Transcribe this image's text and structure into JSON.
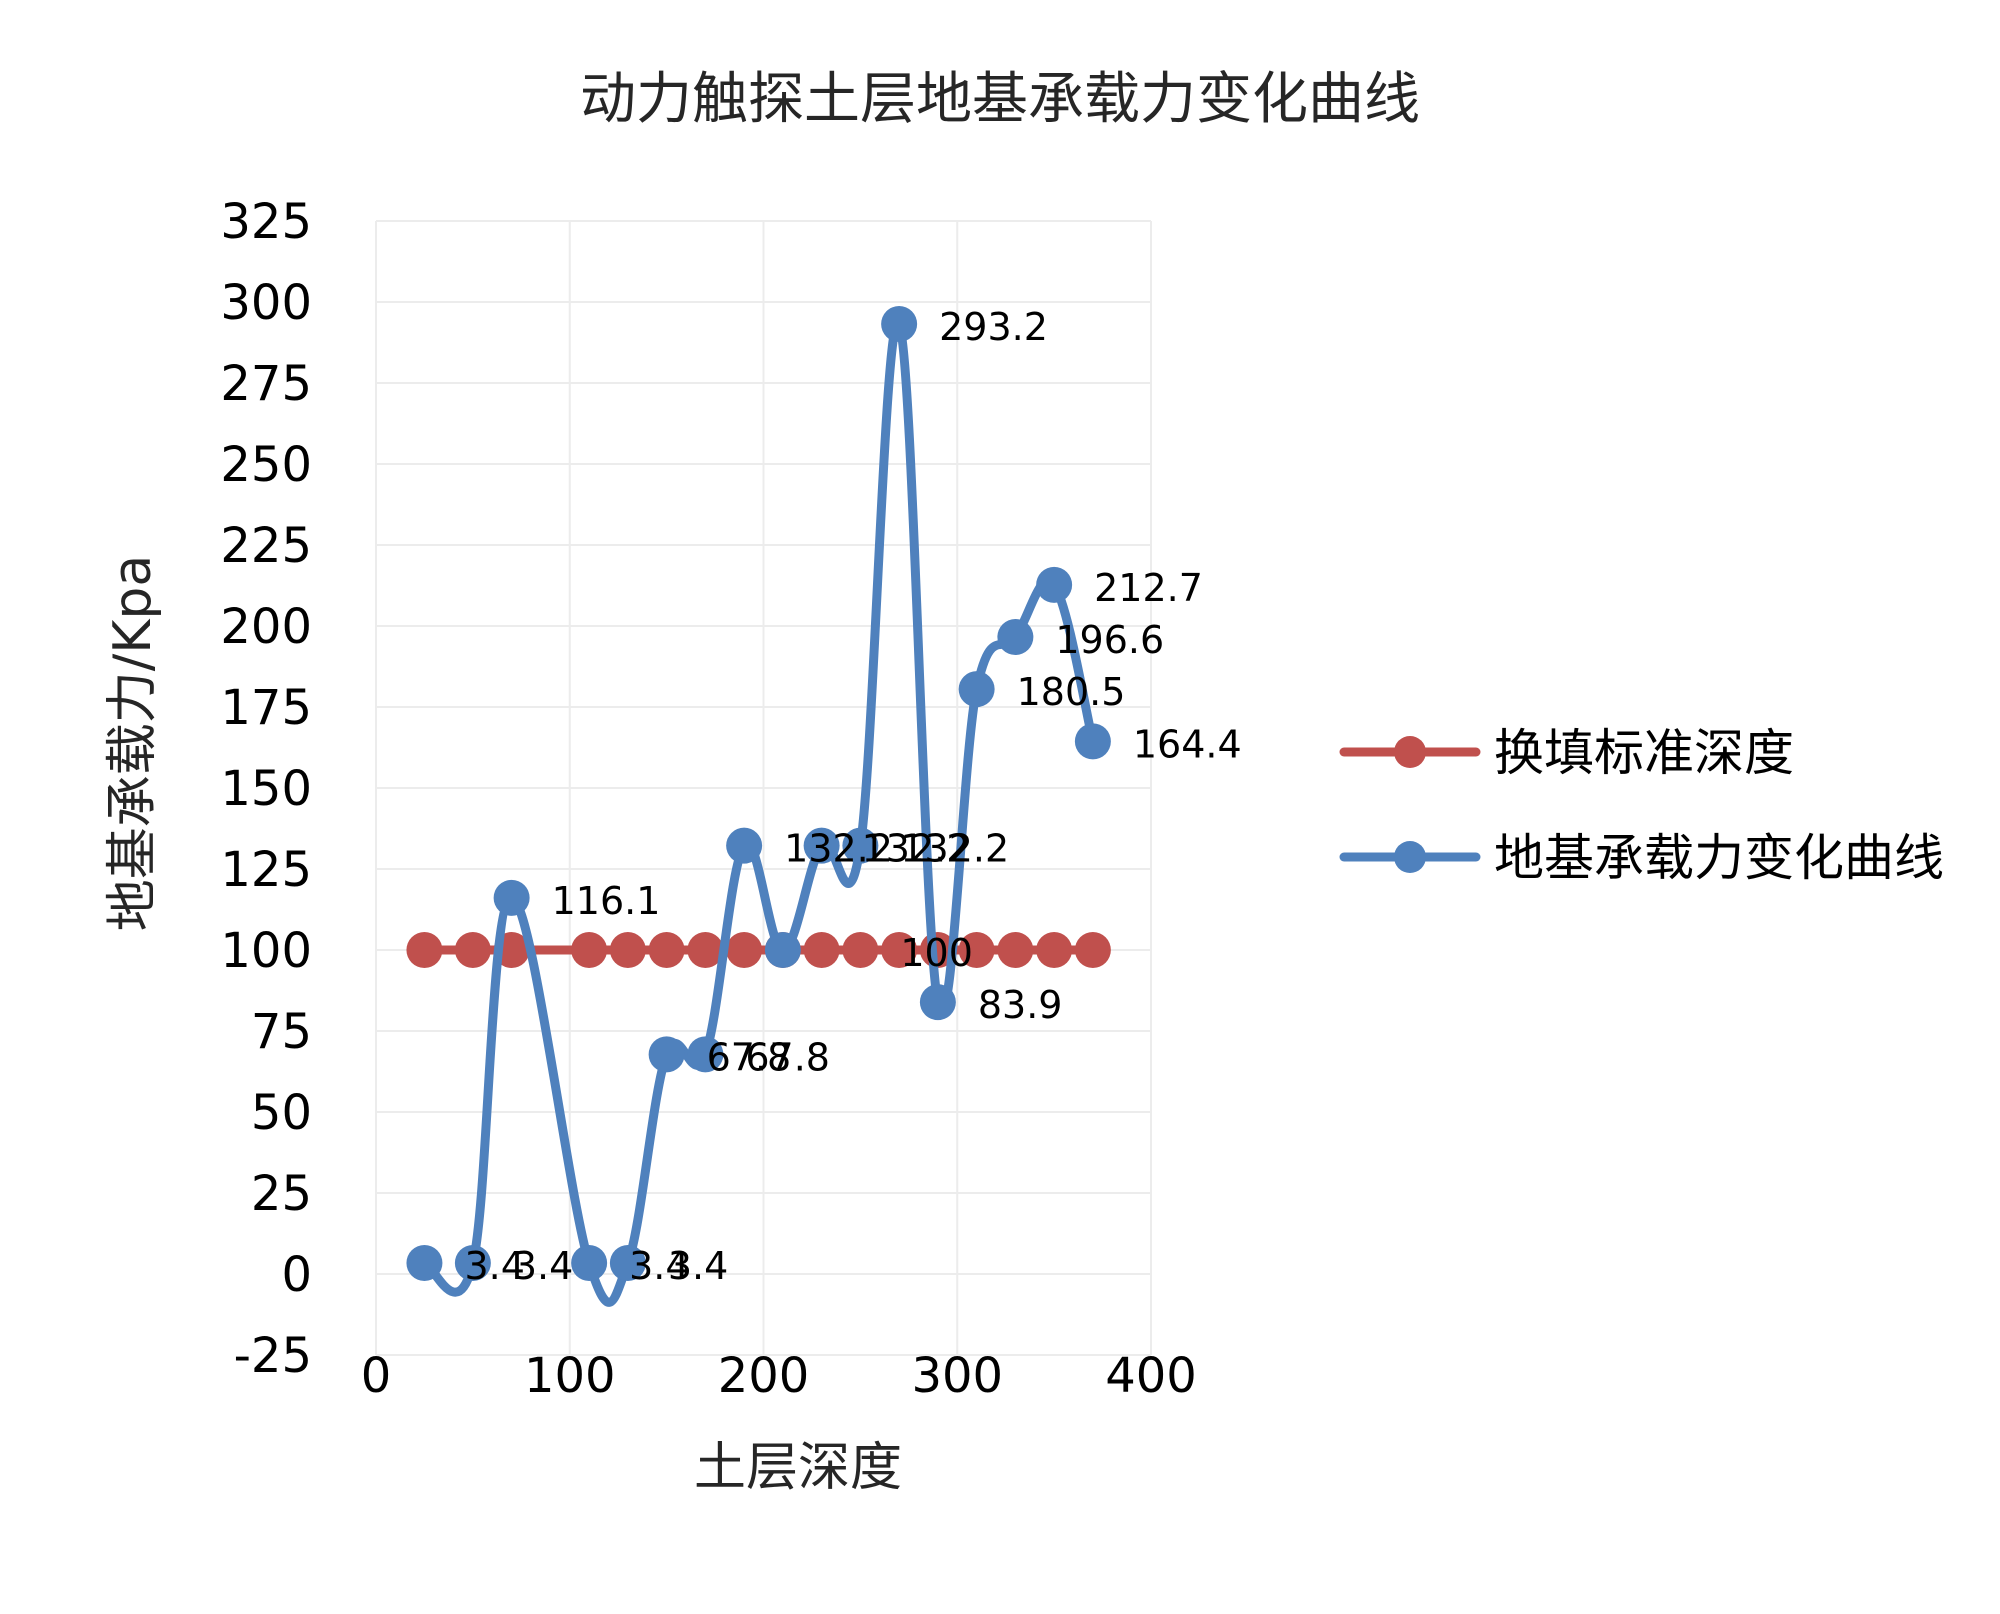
{
  "chart_data": {
    "type": "line",
    "title": "动力触探土层地基承载力变化曲线",
    "xlabel": "土层深度",
    "ylabel": "地基承载力/Kpa",
    "xlim": [
      0,
      400
    ],
    "ylim": [
      -25,
      325
    ],
    "xticks": [
      "0",
      "100",
      "200",
      "300",
      "400"
    ],
    "yticks": [
      "-25",
      "0",
      "25",
      "50",
      "75",
      "100",
      "125",
      "150",
      "175",
      "200",
      "225",
      "250",
      "275",
      "300",
      "325"
    ],
    "grid": true,
    "legend_position": "right",
    "series": [
      {
        "name": "换填标准深度",
        "color": "#c0504d",
        "x": [
          25,
          50,
          70,
          110,
          130,
          150,
          170,
          190,
          210,
          230,
          250,
          270,
          290,
          310,
          330,
          350,
          370
        ],
        "y": [
          100,
          100,
          100,
          100,
          100,
          100,
          100,
          100,
          100,
          100,
          100,
          100,
          100,
          100,
          100,
          100,
          100
        ],
        "labels": [
          "",
          "",
          "",
          "",
          "",
          "",
          "",
          "",
          "",
          "",
          "100",
          "",
          "",
          "",
          "",
          "",
          ""
        ]
      },
      {
        "name": "地基承载力变化曲线",
        "color": "#4f81bd",
        "x": [
          25,
          50,
          70,
          110,
          130,
          150,
          170,
          190,
          210,
          230,
          250,
          270,
          290,
          310,
          330,
          350,
          370
        ],
        "y": [
          3.4,
          3.4,
          116.1,
          3.4,
          3.4,
          67.8,
          67.8,
          132.2,
          100,
          132.2,
          132.2,
          293.2,
          83.9,
          180.5,
          196.6,
          212.7,
          164.4
        ],
        "labels": [
          "3.4",
          "3.4",
          "116.1",
          "3.4",
          "3.4",
          "67.8",
          "67.8",
          "132.2",
          "",
          "132.2",
          "132.2",
          "293.2",
          "83.9",
          "180.5",
          "196.6",
          "212.7",
          "164.4"
        ]
      }
    ]
  }
}
